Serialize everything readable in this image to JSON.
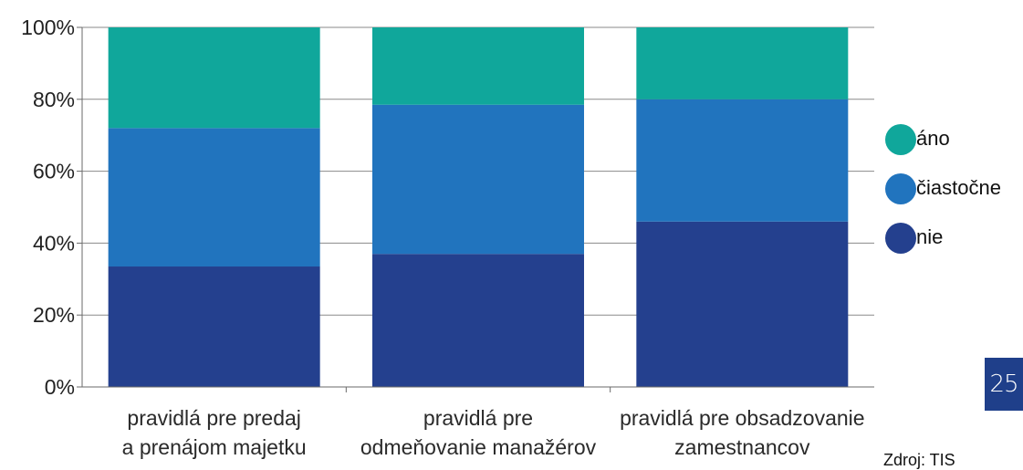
{
  "chart_data": {
    "type": "bar",
    "stacked": true,
    "percent": true,
    "categories": [
      [
        "pravidlá pre predaj",
        "a prenájom majetku"
      ],
      [
        "pravidlá pre",
        "odmeňovanie manažérov"
      ],
      [
        "pravidlá pre obsadzovanie",
        "zamestnancov"
      ]
    ],
    "series": [
      {
        "name": "nie",
        "color": "#24408e",
        "values": [
          33.5,
          37,
          46
        ]
      },
      {
        "name": "čiastočne",
        "color": "#2174be",
        "values": [
          38.5,
          41.5,
          34
        ]
      },
      {
        "name": "áno",
        "color": "#10a79b",
        "values": [
          28,
          21.5,
          20
        ]
      }
    ],
    "ylim": [
      0,
      100
    ],
    "yticks": [
      "0%",
      "20%",
      "40%",
      "60%",
      "80%",
      "100%"
    ],
    "grid": true,
    "legend": {
      "position": "right",
      "order": [
        "áno",
        "čiastočne",
        "nie"
      ]
    }
  },
  "page_number": "25",
  "source_note": "Zdroj: TIS"
}
